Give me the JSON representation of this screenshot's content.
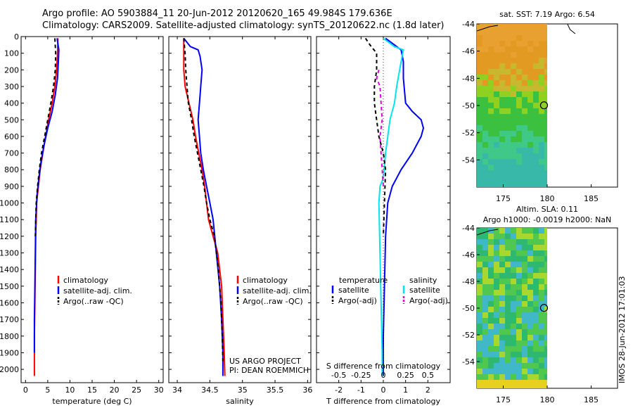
{
  "header": {
    "line1": "Argo profile: AO 5903884_11 20-Jun-2012 20120620_165 49.984S 179.636E",
    "line2": "Climatology: CARS2009. Satellite-adjusted climatology: synTS_20120622.nc (1.8d later)"
  },
  "stamp": "IMOS 28-Jun-2012 17:01:03",
  "colors": {
    "climatology": "#ff0000",
    "satellite": "#0000ff",
    "argo": "#000000",
    "s_satellite": "#00e5ee",
    "s_argo": "#e000e0"
  },
  "chart_data": [
    {
      "id": "temperature",
      "type": "line",
      "xlabel": "temperature (deg C)",
      "ylabel": "",
      "xlim": [
        -1,
        31
      ],
      "ylim": [
        2080,
        0
      ],
      "xticks": [
        "0",
        "5",
        "10",
        "15",
        "20",
        "25",
        "30"
      ],
      "yticks": [
        "0",
        "100",
        "200",
        "300",
        "400",
        "500",
        "600",
        "700",
        "800",
        "900",
        "1000",
        "1100",
        "1200",
        "1300",
        "1400",
        "1500",
        "1600",
        "1700",
        "1800",
        "1900",
        "2000"
      ],
      "legend": [
        "climatology",
        "satellite-adj. clim.",
        "Argo(..raw -QC)"
      ],
      "series": [
        {
          "name": "climatology",
          "color": "red",
          "x": [
            7.3,
            7.2,
            7.0,
            6.6,
            6.0,
            5.2,
            4.5,
            3.9,
            3.3,
            2.9,
            2.5,
            2.3,
            2.2,
            2.1,
            2.0,
            2.0
          ],
          "y": [
            10,
            100,
            200,
            300,
            400,
            500,
            600,
            700,
            800,
            900,
            1000,
            1200,
            1400,
            1600,
            1800,
            2040
          ]
        },
        {
          "name": "satellite-adj. clim.",
          "color": "blue",
          "x": [
            7.1,
            7.5,
            7.4,
            7.2,
            6.7,
            6.0,
            5.0,
            4.2,
            3.5,
            3.0,
            2.6,
            2.3,
            2.2,
            2.1,
            2.0,
            2.0
          ],
          "y": [
            10,
            80,
            150,
            250,
            350,
            450,
            550,
            650,
            750,
            850,
            950,
            1100,
            1300,
            1500,
            1700,
            1900
          ]
        },
        {
          "name": "Argo(..raw -QC)",
          "color": "black",
          "x": [
            6.6,
            6.8,
            6.7,
            6.3,
            5.7,
            5.0,
            4.3,
            3.6,
            3.1,
            2.7,
            2.4,
            2.3,
            2.2
          ],
          "y": [
            10,
            100,
            200,
            300,
            400,
            500,
            600,
            700,
            800,
            900,
            1000,
            1100,
            1200
          ]
        }
      ]
    },
    {
      "id": "salinity",
      "type": "line",
      "xlabel": "salinity",
      "ylabel": "",
      "xlim": [
        33.87,
        36.05
      ],
      "ylim": [
        2080,
        0
      ],
      "xticks": [
        "34",
        "34.5",
        "35",
        "35.5",
        "36"
      ],
      "legend": [
        "climatology",
        "satellite-adj. clim.",
        "Argo(..raw -QC)"
      ],
      "annotations": [
        "US ARGO PROJECT",
        "PI: DEAN ROEMMICH"
      ],
      "series": [
        {
          "name": "climatology",
          "color": "red",
          "x": [
            34.1,
            34.1,
            34.1,
            34.12,
            34.18,
            34.24,
            34.28,
            34.33,
            34.38,
            34.42,
            34.45,
            34.48,
            34.55,
            34.62,
            34.68,
            34.7,
            34.72,
            34.73
          ],
          "y": [
            10,
            100,
            200,
            300,
            400,
            500,
            600,
            700,
            800,
            900,
            1000,
            1100,
            1200,
            1300,
            1500,
            1700,
            1900,
            2040
          ]
        },
        {
          "name": "satellite-adj. clim.",
          "color": "blue",
          "x": [
            34.1,
            34.2,
            34.32,
            34.35,
            34.38,
            34.36,
            34.34,
            34.32,
            34.34,
            34.36,
            34.4,
            34.45,
            34.5,
            34.55,
            34.6,
            34.65,
            34.68,
            34.7,
            34.7
          ],
          "y": [
            10,
            60,
            80,
            120,
            200,
            300,
            400,
            500,
            600,
            700,
            800,
            900,
            1000,
            1100,
            1300,
            1500,
            1700,
            1900,
            2040
          ]
        },
        {
          "name": "Argo(..raw -QC)",
          "color": "black",
          "x": [
            34.1,
            34.12,
            34.13,
            34.15,
            34.17,
            34.22,
            34.26,
            34.31,
            34.36,
            34.41,
            34.45,
            34.5,
            34.57,
            34.63,
            34.67,
            34.69,
            34.7
          ],
          "y": [
            10,
            100,
            200,
            300,
            400,
            500,
            600,
            700,
            800,
            900,
            1000,
            1100,
            1200,
            1400,
            1600,
            1800,
            1950
          ]
        }
      ]
    },
    {
      "id": "difference",
      "type": "line",
      "xlabel": "T difference from climatology",
      "top_label": "S difference from climatology",
      "xlim": [
        -3,
        3
      ],
      "ylim": [
        2080,
        0
      ],
      "xticks": [
        "-2",
        "-1",
        "0",
        "1",
        "2"
      ],
      "top_ticks": [
        "-0.5",
        "-0.25",
        "0",
        "0.25",
        "0.5"
      ],
      "legend_groups": {
        "temperature": {
          "title": "temperature",
          "items": [
            "satellite",
            "Argo(-adj)"
          ]
        },
        "salinity": {
          "title": "salinity",
          "items": [
            "satellite",
            "Argo(-adj)"
          ]
        }
      },
      "series": [
        {
          "name": "temperature satellite",
          "color": "blue",
          "x": [
            0.1,
            0.6,
            0.8,
            0.9,
            0.9,
            1.0,
            1.3,
            1.7,
            1.8,
            1.7,
            1.3,
            0.8,
            0.4,
            0.2,
            0.1,
            0.05,
            0.0,
            0.0
          ],
          "y": [
            10,
            60,
            80,
            150,
            250,
            400,
            450,
            500,
            550,
            600,
            700,
            800,
            900,
            1000,
            1200,
            1500,
            1800,
            2040
          ]
        },
        {
          "name": "salinity satellite",
          "color": "cyan",
          "x": [
            0.0,
            0.5,
            0.9,
            0.8,
            0.6,
            0.5,
            0.3,
            0.1,
            0.0,
            -0.15,
            -0.2,
            -0.15,
            -0.1,
            -0.05,
            -0.05
          ],
          "y": [
            10,
            60,
            80,
            150,
            300,
            400,
            500,
            700,
            850,
            900,
            1000,
            1300,
            1600,
            1900,
            2040
          ]
        },
        {
          "name": "temperature Argo(-adj)",
          "color": "black",
          "x": [
            -0.8,
            -0.6,
            -0.3,
            -0.3,
            -0.4,
            -0.4,
            -0.3,
            -0.2,
            0.0,
            0.1,
            0.05,
            0.0
          ],
          "y": [
            10,
            50,
            100,
            200,
            300,
            400,
            500,
            600,
            700,
            800,
            1000,
            1200
          ]
        },
        {
          "name": "salinity Argo(-adj)",
          "color": "magenta",
          "x": [
            -0.2,
            -0.3,
            -0.15,
            -0.1,
            -0.05,
            -0.15,
            -0.1,
            -0.05,
            0.0
          ],
          "y": [
            200,
            250,
            300,
            400,
            500,
            600,
            700,
            800,
            900
          ]
        }
      ]
    },
    {
      "id": "sst-map",
      "type": "heatmap",
      "title": "sat. SST: 7.19 Argo: 6.54",
      "xlim": [
        172,
        188
      ],
      "ylim": [
        -56,
        -44
      ],
      "xticks": [
        "175",
        "180",
        "185"
      ],
      "yticks": [
        "-44",
        "-46",
        "-48",
        "-50",
        "-52",
        "-54"
      ],
      "argo_position": {
        "lon": 179.636,
        "lat": -49.984
      }
    },
    {
      "id": "sla-map",
      "type": "heatmap",
      "title": "Altim. SLA: 0.11",
      "subtitle": "Argo h1000: -0.0019 h2000: NaN",
      "xlim": [
        172,
        188
      ],
      "ylim": [
        -56,
        -44
      ],
      "xticks": [
        "175",
        "180",
        "185"
      ],
      "yticks": [
        "-44",
        "-46",
        "-48",
        "-50",
        "-52",
        "-54"
      ],
      "argo_position": {
        "lon": 179.636,
        "lat": -49.984
      }
    }
  ]
}
